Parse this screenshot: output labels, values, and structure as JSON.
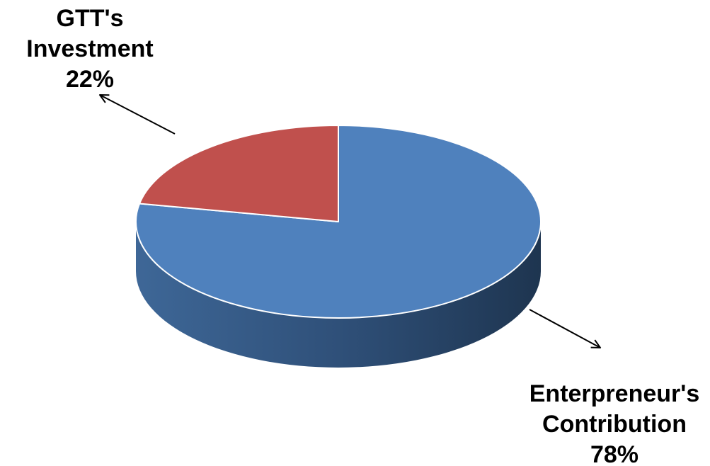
{
  "chart_data": {
    "type": "pie",
    "style": "3d",
    "title": "",
    "slices": [
      {
        "name": "Enterpreneur's Contribution",
        "label_lines": [
          "Enterpreneur's",
          "Contribution"
        ],
        "percent_label": "78%",
        "value": 78,
        "color": "#4F81BD"
      },
      {
        "name": "GTT's Investment",
        "label_lines": [
          "GTT's",
          "Investment"
        ],
        "percent_label": "22%",
        "value": 22,
        "color": "#C0504D"
      }
    ],
    "legend": "none"
  }
}
